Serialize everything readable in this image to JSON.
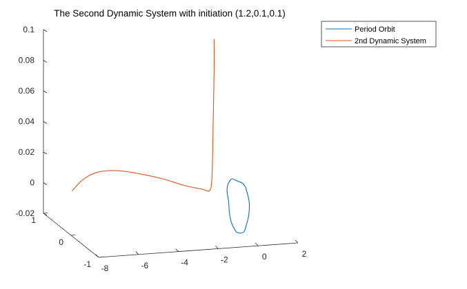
{
  "chart_data": {
    "type": "line",
    "title": "The Second Dynamic System with initiation (1.2,0.1,0.1)",
    "xlabel": "",
    "ylabel": "",
    "zlabel": "",
    "view": "3d",
    "grid": false,
    "legend_position": "top-right",
    "axes": {
      "x": {
        "ticks": [
          "-8",
          "-6",
          "-4",
          "-2",
          "0",
          "2"
        ]
      },
      "y": {
        "ticks": [
          "-1",
          "0",
          "1"
        ]
      },
      "z": {
        "ticks": [
          "-0.02",
          "0",
          "0.02",
          "0.04",
          "0.06",
          "0.08",
          "0.1"
        ]
      }
    },
    "series": [
      {
        "name": "Period Orbit",
        "color": "#0072BD",
        "x": [
          0.8,
          0.7,
          0.4,
          0.0,
          -0.4,
          -0.8,
          -1.1,
          -1.3,
          -1.4,
          -1.3,
          -1.1,
          -0.8,
          -0.4,
          0.0,
          0.4,
          0.7,
          0.8
        ],
        "y": [
          0.3,
          0.1,
          -0.1,
          -0.3,
          -0.5,
          -0.6,
          -0.7,
          -0.7,
          -0.7,
          -0.6,
          -0.4,
          -0.2,
          0.0,
          0.2,
          0.3,
          0.35,
          0.3
        ],
        "z": [
          -0.003,
          -0.009,
          -0.014,
          -0.017,
          -0.018,
          -0.017,
          -0.014,
          -0.009,
          -0.003,
          0.002,
          0.005,
          0.006,
          0.006,
          0.004,
          0.001,
          -0.001,
          -0.003
        ]
      },
      {
        "name": "2nd Dynamic System",
        "color": "#D95319",
        "x": [
          -7.5,
          -6.8,
          -6.0,
          -5.0,
          -4.0,
          -3.0,
          -2.2,
          -1.6,
          -1.3,
          -1.2,
          -1.15,
          -1.1,
          -1.1
        ],
        "y": [
          0.6,
          0.7,
          0.75,
          0.75,
          0.7,
          0.55,
          0.35,
          0.15,
          0.08,
          0.07,
          0.07,
          0.07,
          0.07
        ],
        "z": [
          -0.002,
          0.003,
          0.006,
          0.006,
          0.004,
          0.002,
          0.0,
          0.0,
          0.0,
          0.01,
          0.04,
          0.07,
          0.09
        ]
      }
    ]
  }
}
